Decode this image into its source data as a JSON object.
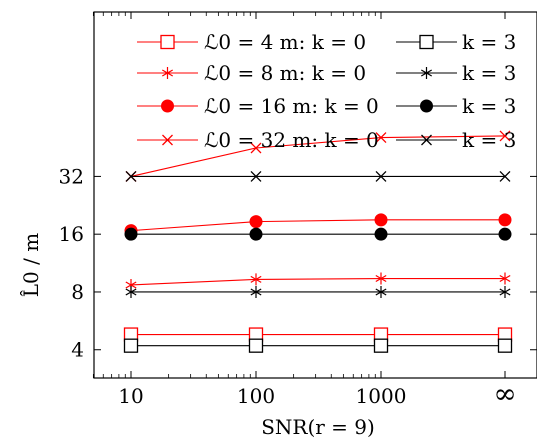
{
  "chart_data": {
    "type": "line",
    "xlabel": "SNR(r = 9)",
    "ylabel": "L̂0 / m",
    "x_categories": [
      "10",
      "100",
      "1000",
      "∞"
    ],
    "y_scale": "log2",
    "y_ticks": [
      4,
      8,
      16,
      32
    ],
    "y_tick_labels": [
      "4",
      "8",
      "16",
      "32"
    ],
    "ylim": [
      2.85,
      230
    ],
    "grid": false,
    "legend_position": "top",
    "legend_columns": 2,
    "series": [
      {
        "name": "ℒ0 = 4 m: k = 0",
        "color": "#ff0000",
        "marker": "square",
        "values": [
          4.8,
          4.8,
          4.8,
          4.8
        ]
      },
      {
        "name": "k = 3",
        "color": "#000000",
        "marker": "square",
        "values": [
          4.2,
          4.2,
          4.2,
          4.2
        ]
      },
      {
        "name": "ℒ0 = 8 m: k = 0",
        "color": "#ff0000",
        "marker": "star",
        "values": [
          8.7,
          9.3,
          9.4,
          9.4
        ]
      },
      {
        "name": "k = 3",
        "color": "#000000",
        "marker": "star",
        "values": [
          8.0,
          8.0,
          8.0,
          8.0
        ]
      },
      {
        "name": "ℒ0 = 16 m: k = 0",
        "color": "#ff0000",
        "marker": "circle",
        "values": [
          16.7,
          18.6,
          19.0,
          19.0
        ]
      },
      {
        "name": "k = 3",
        "color": "#000000",
        "marker": "circle",
        "values": [
          16.0,
          16.0,
          16.0,
          16.0
        ]
      },
      {
        "name": "ℒ0 = 32 m: k = 0",
        "color": "#ff0000",
        "marker": "cross",
        "values": [
          32.0,
          45.0,
          51.0,
          52.0
        ]
      },
      {
        "name": "k = 3",
        "color": "#000000",
        "marker": "cross",
        "values": [
          32.0,
          32.0,
          32.0,
          32.0
        ]
      }
    ],
    "legend_rows": [
      {
        "left": "ℒ0 = 4 m: k = 0",
        "right": "k = 3",
        "marker": "square"
      },
      {
        "left": "ℒ0 = 8 m: k = 0",
        "right": "k = 3",
        "marker": "star"
      },
      {
        "left": "ℒ0 = 16 m: k = 0",
        "right": "k = 3",
        "marker": "circle"
      },
      {
        "left": "ℒ0 = 32 m: k = 0",
        "right": "k = 3",
        "marker": "cross"
      }
    ]
  }
}
